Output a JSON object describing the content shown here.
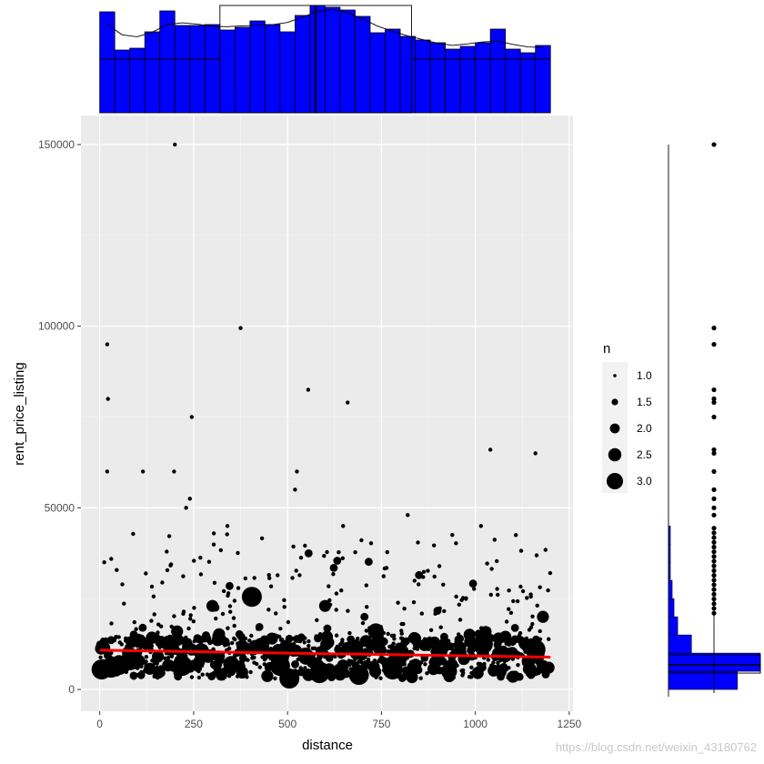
{
  "chart_data": {
    "type": "scatter",
    "title": "",
    "xlabel": "distance",
    "ylabel": "rent_price_listing",
    "xlim": [
      -50,
      1260
    ],
    "ylim": [
      -6000,
      158000
    ],
    "x_ticks": [
      0,
      250,
      500,
      750,
      1000,
      1250
    ],
    "x_tick_labels": [
      "0",
      "250",
      "500",
      "750",
      "1000",
      "1250"
    ],
    "y_ticks": [
      0,
      50000,
      100000,
      150000
    ],
    "y_tick_labels": [
      "0",
      "50000",
      "100000",
      "150000"
    ],
    "grid": true,
    "legend": {
      "title": "n",
      "placement": "right",
      "sizes": [
        1.0,
        1.5,
        2.0,
        2.5,
        3.0
      ],
      "labels": [
        "1.0",
        "1.5",
        "2.0",
        "2.5",
        "3.0"
      ]
    },
    "trend_line": {
      "color": "#ff0000",
      "x": [
        0,
        1200
      ],
      "y": [
        10800,
        8900
      ]
    },
    "outliers": [
      {
        "x": 200,
        "y": 150000,
        "n": 1
      },
      {
        "x": 375,
        "y": 99500,
        "n": 1
      },
      {
        "x": 20,
        "y": 95000,
        "n": 1
      },
      {
        "x": 555,
        "y": 82500,
        "n": 1
      },
      {
        "x": 22,
        "y": 80000,
        "n": 1
      },
      {
        "x": 660,
        "y": 79000,
        "n": 1
      },
      {
        "x": 245,
        "y": 75000,
        "n": 1
      },
      {
        "x": 1040,
        "y": 66000,
        "n": 1
      },
      {
        "x": 1160,
        "y": 65000,
        "n": 1
      },
      {
        "x": 20,
        "y": 60000,
        "n": 1
      },
      {
        "x": 115,
        "y": 60000,
        "n": 1
      },
      {
        "x": 198,
        "y": 60000,
        "n": 1
      },
      {
        "x": 525,
        "y": 60000,
        "n": 1
      },
      {
        "x": 240,
        "y": 52500,
        "n": 1
      },
      {
        "x": 230,
        "y": 50000,
        "n": 1
      },
      {
        "x": 520,
        "y": 55000,
        "n": 1
      },
      {
        "x": 12,
        "y": 35000,
        "n": 1
      },
      {
        "x": 340,
        "y": 45000,
        "n": 1
      },
      {
        "x": 648,
        "y": 45000,
        "n": 1
      },
      {
        "x": 1015,
        "y": 45000,
        "n": 1
      },
      {
        "x": 820,
        "y": 48000,
        "n": 1
      }
    ],
    "large_points": [
      {
        "x": 5,
        "y": 5500,
        "n": 3
      },
      {
        "x": 12,
        "y": 11500,
        "n": 2
      },
      {
        "x": 30,
        "y": 6000,
        "n": 3
      },
      {
        "x": 80,
        "y": 7500,
        "n": 2.5
      },
      {
        "x": 190,
        "y": 11500,
        "n": 2.5
      },
      {
        "x": 220,
        "y": 6500,
        "n": 3
      },
      {
        "x": 270,
        "y": 10500,
        "n": 2.5
      },
      {
        "x": 300,
        "y": 23000,
        "n": 2
      },
      {
        "x": 350,
        "y": 7000,
        "n": 2.5
      },
      {
        "x": 405,
        "y": 25500,
        "n": 3
      },
      {
        "x": 430,
        "y": 12000,
        "n": 2.5
      },
      {
        "x": 480,
        "y": 6500,
        "n": 3
      },
      {
        "x": 505,
        "y": 3000,
        "n": 3
      },
      {
        "x": 550,
        "y": 9000,
        "n": 2.5
      },
      {
        "x": 585,
        "y": 4500,
        "n": 3
      },
      {
        "x": 600,
        "y": 23000,
        "n": 2
      },
      {
        "x": 605,
        "y": 14500,
        "n": 2
      },
      {
        "x": 680,
        "y": 11500,
        "n": 2.5
      },
      {
        "x": 690,
        "y": 4000,
        "n": 3
      },
      {
        "x": 735,
        "y": 16000,
        "n": 2.5
      },
      {
        "x": 780,
        "y": 5500,
        "n": 3
      },
      {
        "x": 805,
        "y": 9500,
        "n": 2
      },
      {
        "x": 840,
        "y": 14000,
        "n": 2
      },
      {
        "x": 910,
        "y": 10500,
        "n": 2
      },
      {
        "x": 930,
        "y": 5000,
        "n": 2.5
      },
      {
        "x": 1020,
        "y": 12500,
        "n": 3
      },
      {
        "x": 1080,
        "y": 14500,
        "n": 2
      },
      {
        "x": 1100,
        "y": 3500,
        "n": 2
      },
      {
        "x": 1160,
        "y": 11000,
        "n": 3
      },
      {
        "x": 1180,
        "y": 20000,
        "n": 2
      },
      {
        "x": 1195,
        "y": 6000,
        "n": 2
      }
    ],
    "dense_cloud": {
      "x_range": [
        0,
        1200
      ],
      "y_core_range": [
        3000,
        14000
      ],
      "y_spread_range": [
        14000,
        43000
      ],
      "point_count": 1100
    },
    "marginal_x_histogram": {
      "bin_width": 40,
      "bin_starts": [
        0,
        40,
        80,
        120,
        160,
        200,
        240,
        280,
        320,
        360,
        400,
        440,
        480,
        520,
        560,
        600,
        640,
        680,
        720,
        760,
        800,
        840,
        880,
        920,
        960,
        1000,
        1040,
        1080,
        1120,
        1160
      ],
      "counts": [
        111,
        69,
        71,
        89,
        112,
        96,
        96,
        97,
        91,
        94,
        101,
        97,
        89,
        107,
        118,
        116,
        113,
        106,
        88,
        92,
        84,
        80,
        77,
        70,
        73,
        77,
        92,
        70,
        66,
        74
      ],
      "fill": "#0000ff"
    },
    "marginal_y_histogram": {
      "fill": "#0000ff",
      "bin_ranges": [
        [
          0,
          5000
        ],
        [
          5000,
          10000
        ],
        [
          10000,
          15000
        ],
        [
          15000,
          20000
        ],
        [
          20000,
          25000
        ],
        [
          25000,
          30000
        ],
        [
          30000,
          35000
        ],
        [
          35000,
          40000
        ],
        [
          40000,
          45000
        ]
      ],
      "counts": [
        75,
        100,
        25,
        10,
        6,
        4,
        2,
        2,
        2
      ]
    }
  },
  "watermark": "https://blog.csdn.net/weixin_43180762"
}
